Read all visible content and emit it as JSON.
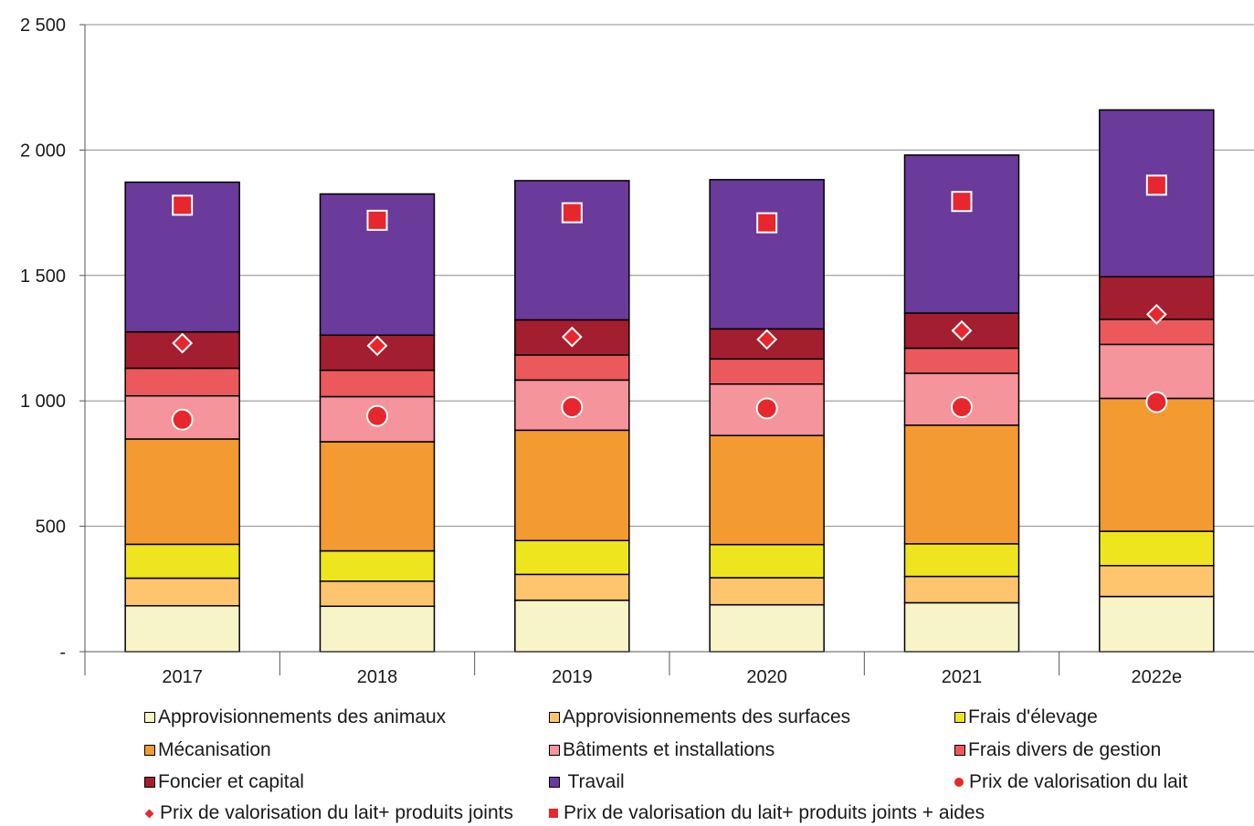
{
  "chart_data": {
    "type": "bar",
    "stacked": true,
    "categories": [
      "2017",
      "2018",
      "2019",
      "2020",
      "2021",
      "2022e"
    ],
    "y_ticks": [
      "-",
      "500",
      "1 000",
      "1 500",
      "2 000",
      "2 500"
    ],
    "ylim": [
      0,
      2500
    ],
    "grid": true,
    "legend_position": "bottom",
    "series": [
      {
        "name": "Approvisionnements des animaux",
        "color": "#f7f4c8",
        "values": [
          183,
          181,
          205,
          187,
          195,
          220
        ]
      },
      {
        "name": "Approvisionnements des surfaces",
        "color": "#fec56e",
        "values": [
          110,
          100,
          103,
          108,
          105,
          123
        ]
      },
      {
        "name": "Frais d'élevage",
        "color": "#eee51e",
        "values": [
          135,
          121,
          135,
          132,
          130,
          137
        ]
      },
      {
        "name": "Mécanisation",
        "color": "#f39a31",
        "values": [
          420,
          435,
          440,
          435,
          473,
          530
        ]
      },
      {
        "name": "Bâtiments et installations",
        "color": "#f5949a",
        "values": [
          172,
          180,
          200,
          205,
          207,
          215
        ]
      },
      {
        "name": "Frais divers de gestion",
        "color": "#eb595d",
        "values": [
          110,
          105,
          100,
          100,
          100,
          100
        ]
      },
      {
        "name": "Foncier et capital",
        "color": "#a31e2f",
        "values": [
          145,
          140,
          140,
          120,
          140,
          170
        ]
      },
      {
        "name": "Travail",
        "color": "#6a3b9a",
        "values": [
          597,
          563,
          555,
          595,
          630,
          665
        ]
      }
    ],
    "markers": [
      {
        "name": "Prix de valorisation du lait",
        "shape": "circle",
        "color": "#e8262d",
        "values": [
          925,
          940,
          975,
          970,
          975,
          995
        ]
      },
      {
        "name": "Prix de valorisation du lait+ produits joints",
        "shape": "diamond",
        "color": "#e8262d",
        "values": [
          1230,
          1220,
          1255,
          1245,
          1280,
          1345
        ]
      },
      {
        "name": "Prix de valorisation du lait+ produits joints + aides",
        "shape": "square",
        "color": "#e8262d",
        "values": [
          1780,
          1720,
          1750,
          1710,
          1795,
          1860
        ]
      }
    ]
  },
  "legend": {
    "items": [
      {
        "label": "Approvisionnements des animaux",
        "kind": "swatch",
        "color": "#f7f4c8"
      },
      {
        "label": "Approvisionnements des surfaces",
        "kind": "swatch",
        "color": "#fec56e"
      },
      {
        "label": "Frais d'élevage",
        "kind": "swatch",
        "color": "#eee51e"
      },
      {
        "label": "Mécanisation",
        "kind": "swatch",
        "color": "#f39a31"
      },
      {
        "label": "Bâtiments et installations",
        "kind": "swatch",
        "color": "#f5949a"
      },
      {
        "label": "Frais divers de gestion",
        "kind": "swatch",
        "color": "#eb595d"
      },
      {
        "label": "Foncier et capital",
        "kind": "swatch",
        "color": "#a31e2f"
      },
      {
        "label": " Travail",
        "kind": "swatch",
        "color": "#6a3b9a"
      },
      {
        "label": "Prix de valorisation du lait",
        "kind": "circle",
        "color": "#e8262d"
      },
      {
        "label": "Prix de valorisation du lait+ produits joints",
        "kind": "diamond",
        "color": "#e8262d"
      },
      {
        "label": "Prix de valorisation du lait+ produits joints + aides",
        "kind": "square",
        "color": "#e8262d"
      }
    ]
  }
}
